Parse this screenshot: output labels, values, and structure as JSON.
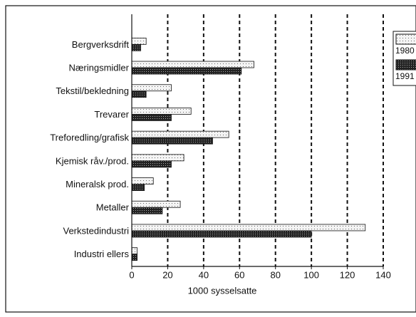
{
  "chart_data": {
    "type": "bar",
    "orientation": "horizontal",
    "x_label": "1000 sysselsatte",
    "categories": [
      "Bergverksdrift",
      "Næringsmidler",
      "Tekstil/bekledning",
      "Trevarer",
      "Treforedling/grafisk",
      "Kjemisk råv./prod.",
      "Mineralsk prod.",
      "Metaller",
      "Verkstedindustri",
      "Industri ellers"
    ],
    "series": [
      {
        "name": "1980",
        "color": "#e8e8e8",
        "values": [
          8,
          68,
          22,
          33,
          54,
          29,
          12,
          27,
          130,
          3
        ]
      },
      {
        "name": "1991",
        "color": "#333333",
        "values": [
          5,
          61,
          8,
          22,
          45,
          22,
          7,
          17,
          100,
          3
        ]
      }
    ],
    "xlim": [
      0,
      140
    ],
    "xticks": [
      0,
      20,
      40,
      60,
      80,
      100,
      120,
      140
    ],
    "grid": true,
    "legend": "right"
  }
}
